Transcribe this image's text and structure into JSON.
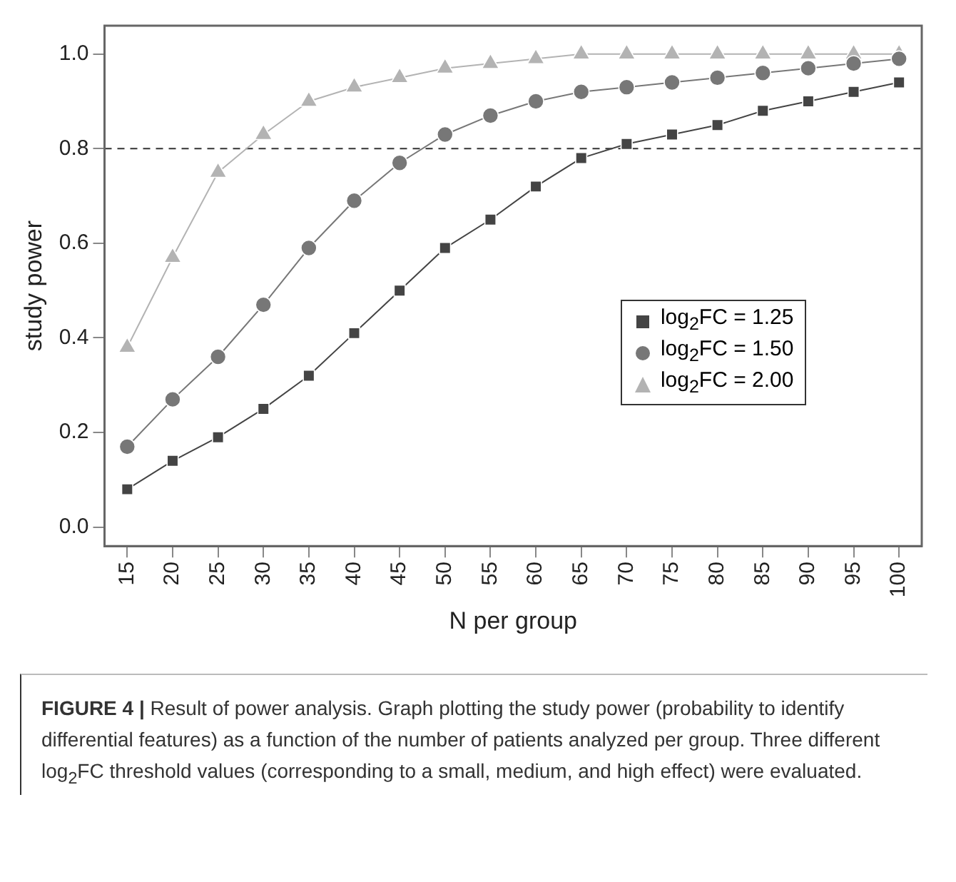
{
  "chart_data": {
    "type": "line",
    "xlabel": "N per group",
    "ylabel": "study power",
    "categories": [
      "15",
      "20",
      "25",
      "30",
      "35",
      "40",
      "45",
      "50",
      "55",
      "60",
      "65",
      "70",
      "75",
      "80",
      "85",
      "90",
      "95",
      "100"
    ],
    "series": [
      {
        "name": "log$_{2}$FC = 1.25",
        "color": "#444444",
        "marker": "square",
        "values": [
          0.08,
          0.14,
          0.19,
          0.25,
          0.32,
          0.41,
          0.5,
          0.59,
          0.65,
          0.72,
          0.78,
          0.81,
          0.83,
          0.85,
          0.88,
          0.9,
          0.92,
          0.94
        ]
      },
      {
        "name": "log$_{2}$FC = 1.50",
        "color": "#777777",
        "marker": "circle",
        "values": [
          0.17,
          0.27,
          0.36,
          0.47,
          0.59,
          0.69,
          0.77,
          0.83,
          0.87,
          0.9,
          0.92,
          0.93,
          0.94,
          0.95,
          0.96,
          0.97,
          0.98,
          0.99
        ]
      },
      {
        "name": "log$_{2}$FC = 2.00",
        "color": "#b3b3b3",
        "marker": "triangle",
        "values": [
          0.38,
          0.57,
          0.75,
          0.83,
          0.9,
          0.93,
          0.95,
          0.97,
          0.98,
          0.99,
          1.0,
          1.0,
          1.0,
          1.0,
          1.0,
          1.0,
          1.0,
          1.0
        ]
      }
    ],
    "ylim": [
      -0.04,
      1.06
    ],
    "yticks": [
      {
        "value": 0,
        "label": "0.0"
      },
      0.2,
      0.4,
      0.6,
      0.8,
      {
        "value": 1,
        "label": "1.0"
      }
    ],
    "ref_lines": [
      {
        "axis": "y",
        "value": 0.8,
        "line_style": "dashed",
        "color": "#333333"
      }
    ],
    "grid": false,
    "legend": "bottom right",
    "annotations": [
      "FIGURE 4 | Result of power analysis. Graph plotting the study power (probability to identify differential features) as a function of the number of patients analyzed per group. Three different log$_{2}$FC threshold values (corresponding to a small, medium, and high effect) were evaluated."
    ]
  }
}
